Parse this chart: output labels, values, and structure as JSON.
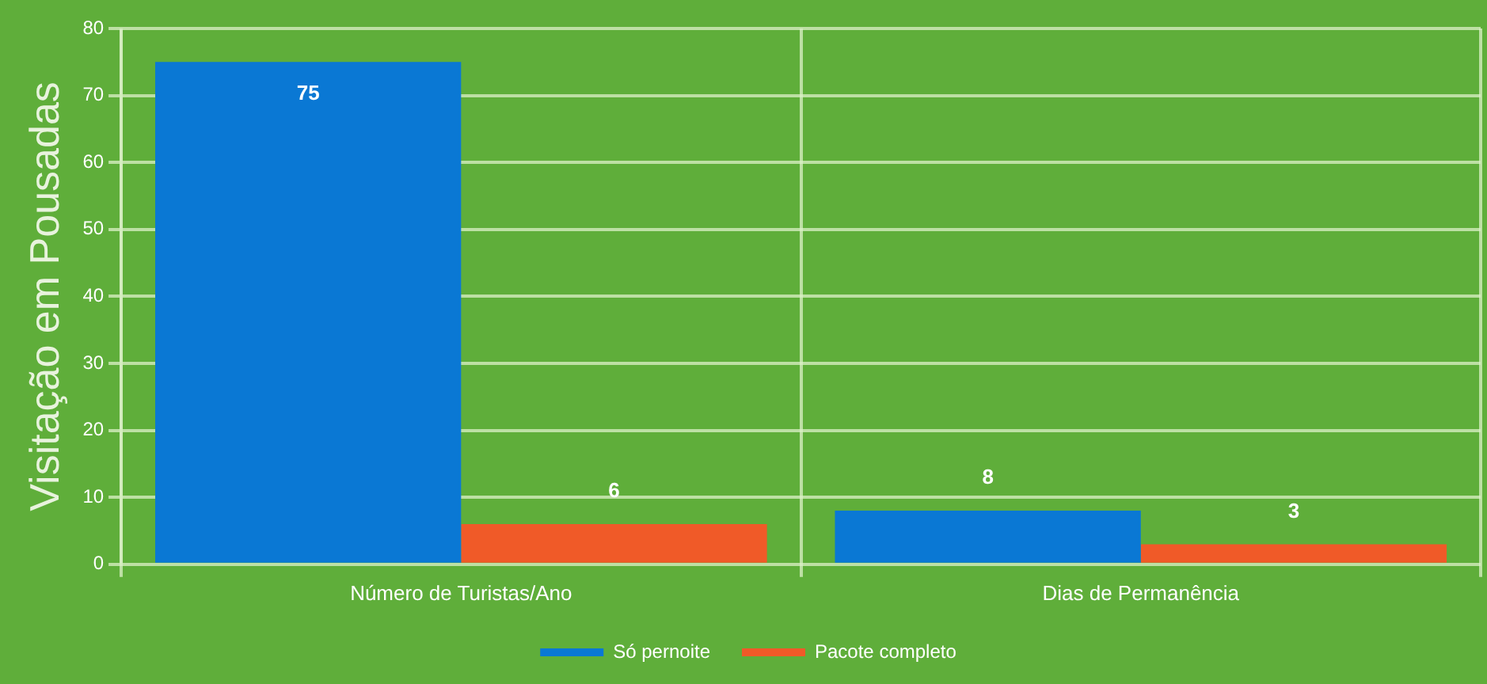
{
  "chart_data": {
    "type": "bar",
    "ylabel": "Visitação em Pousadas",
    "categories": [
      "Número de Turistas/Ano",
      "Dias de Permanência"
    ],
    "series": [
      {
        "name": "Só pernoite",
        "color": "#0a78d4",
        "values": [
          75,
          8
        ]
      },
      {
        "name": "Pacote completo",
        "color": "#f05a28",
        "values": [
          6,
          3
        ]
      }
    ],
    "ylim": [
      0,
      80
    ],
    "yticks": [
      0,
      10,
      20,
      30,
      40,
      50,
      60,
      70,
      80
    ],
    "grid": true,
    "legend": "bottom",
    "data_labels": true
  }
}
